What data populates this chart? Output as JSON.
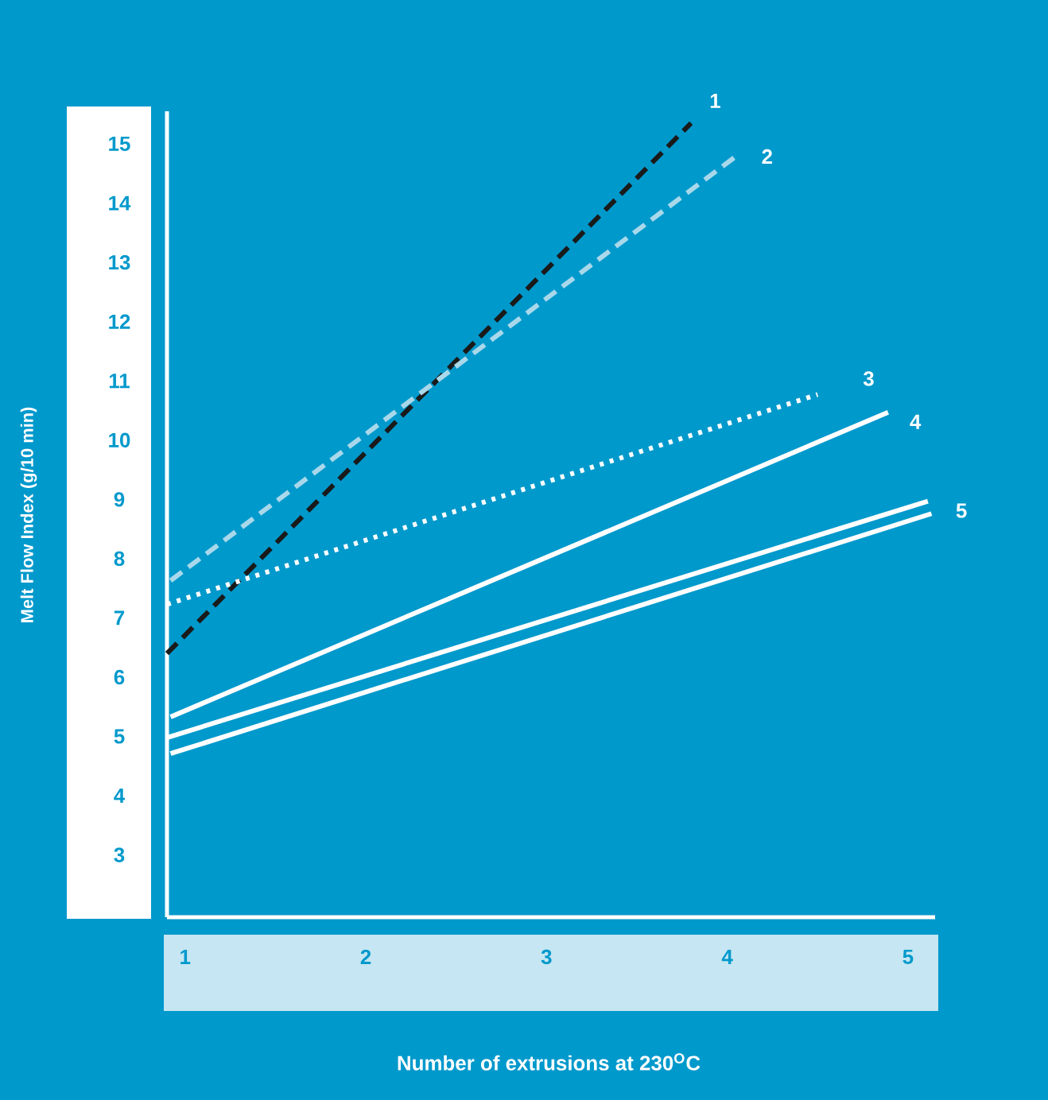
{
  "chart_data": {
    "type": "line",
    "xlabel": "Number of extrusions at 230$^{O}$C",
    "ylabel": "Melt Flow Index  (g/10 min)",
    "xlim": [
      0.9,
      5.15
    ],
    "ylim": [
      1.95,
      15.55
    ],
    "xticks": [
      1,
      2,
      3,
      4,
      5
    ],
    "yticks": [
      3,
      4,
      5,
      6,
      7,
      8,
      9,
      10,
      11,
      12,
      13,
      14,
      15
    ],
    "series": [
      {
        "name": "1",
        "color": "#1a1a1a",
        "line_style": "dashed",
        "x": [
          0.9,
          3.8
        ],
        "values": [
          6.4,
          15.35
        ]
      },
      {
        "name": "2",
        "color": "#a8d8ea",
        "line_style": "dashed",
        "x": [
          0.92,
          4.07
        ],
        "values": [
          7.63,
          14.84
        ]
      },
      {
        "name": "3",
        "color": "#ffffff",
        "line_style": "dotted",
        "x": [
          0.9,
          4.5
        ],
        "values": [
          7.23,
          10.77
        ]
      },
      {
        "name": "4",
        "color": "#ffffff",
        "line_style": "solid",
        "x": [
          0.92,
          4.89
        ],
        "values": [
          5.33,
          10.47
        ]
      },
      {
        "name": "5",
        "color": "#ffffff",
        "line_style": "solid",
        "x": [
          0.9,
          5.11
        ],
        "values": [
          4.98,
          8.97
        ]
      },
      {
        "color": "#ffffff",
        "line_style": "solid",
        "x": [
          0.92,
          5.13
        ],
        "values": [
          4.71,
          8.76
        ]
      }
    ]
  }
}
